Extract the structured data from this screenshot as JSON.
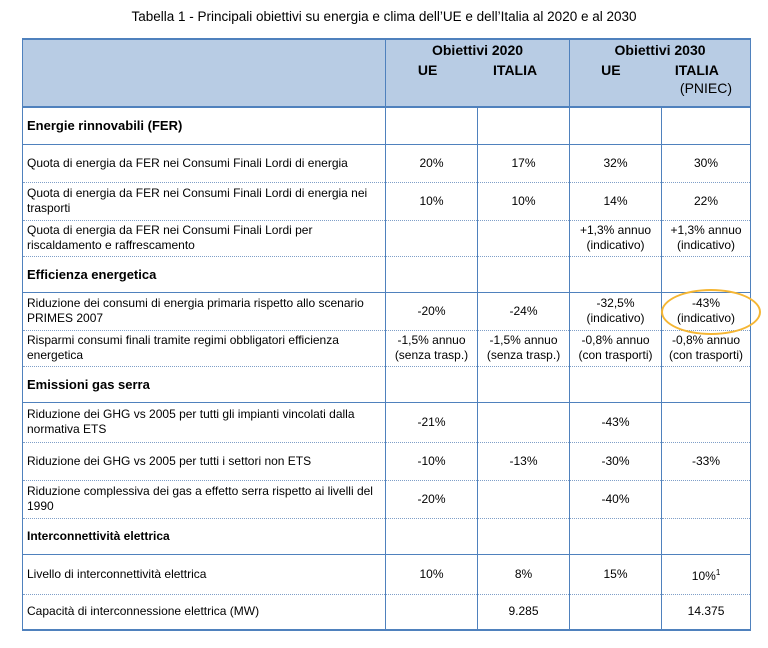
{
  "caption": "Tabella 1 - Principali obiettivi su energia e clima dell’UE e dell’Italia al 2020 e al 2030",
  "header": {
    "group2020": "Obiettivi 2020",
    "group2030": "Obiettivi 2030",
    "ue": "UE",
    "italia": "ITALIA",
    "pniec": "(PNIEC)"
  },
  "sections": {
    "fer": "Energie rinnovabili (FER)",
    "eff": "Efficienza energetica",
    "ghg": "Emissioni gas serra",
    "inter": "Interconnettività elettrica"
  },
  "rows": [
    {
      "label": "Quota di energia da FER nei Consumi Finali Lordi di energia",
      "ue2020": "20%",
      "it2020": "17%",
      "ue2030": "32%",
      "it2030": "30%"
    },
    {
      "label": "Quota di energia da FER nei Consumi Finali Lordi di energia nei trasporti",
      "ue2020": "10%",
      "it2020": "10%",
      "ue2030": "14%",
      "it2030": "22%"
    },
    {
      "label": "Quota di energia da FER nei Consumi Finali Lordi per riscaldamento e raffrescamento",
      "ue2020": "",
      "it2020": "",
      "ue2030": "+1,3% annuo (indicativo)",
      "it2030": "+1,3% annuo (indicativo)"
    },
    {
      "label": "Riduzione dei consumi di energia primaria rispetto allo scenario PRIMES 2007",
      "ue2020": "-20%",
      "it2020": "-24%",
      "ue2030": "-32,5% (indicativo)",
      "it2030": "-43% (indicativo)"
    },
    {
      "label": "Risparmi consumi finali tramite regimi obbligatori efficienza energetica",
      "ue2020": "-1,5% annuo (senza trasp.)",
      "it2020": "-1,5% annuo (senza trasp.)",
      "ue2030": "-0,8% annuo (con trasporti)",
      "it2030": "-0,8% annuo (con trasporti)"
    },
    {
      "label": "Riduzione dei GHG vs 2005 per tutti gli impianti vincolati dalla normativa ETS",
      "ue2020": "-21%",
      "it2020": "",
      "ue2030": "-43%",
      "it2030": ""
    },
    {
      "label": "Riduzione dei GHG vs 2005 per tutti i settori non ETS",
      "ue2020": "-10%",
      "it2020": "-13%",
      "ue2030": "-30%",
      "it2030": "-33%"
    },
    {
      "label": "Riduzione complessiva dei gas a effetto serra rispetto ai livelli del 1990",
      "ue2020": "-20%",
      "it2020": "",
      "ue2030": "-40%",
      "it2030": ""
    },
    {
      "label": "Livello di interconnettività elettrica",
      "ue2020": "10%",
      "it2020": "8%",
      "ue2030": "15%",
      "it2030": "10%",
      "it2030_sup": "1"
    },
    {
      "label": "Capacità di interconnessione elettrica (MW)",
      "ue2020": "",
      "it2020": "9.285",
      "ue2030": "",
      "it2030": "14.375"
    }
  ],
  "highlight_color": "#f5b633",
  "header_color": "#b8cce4"
}
